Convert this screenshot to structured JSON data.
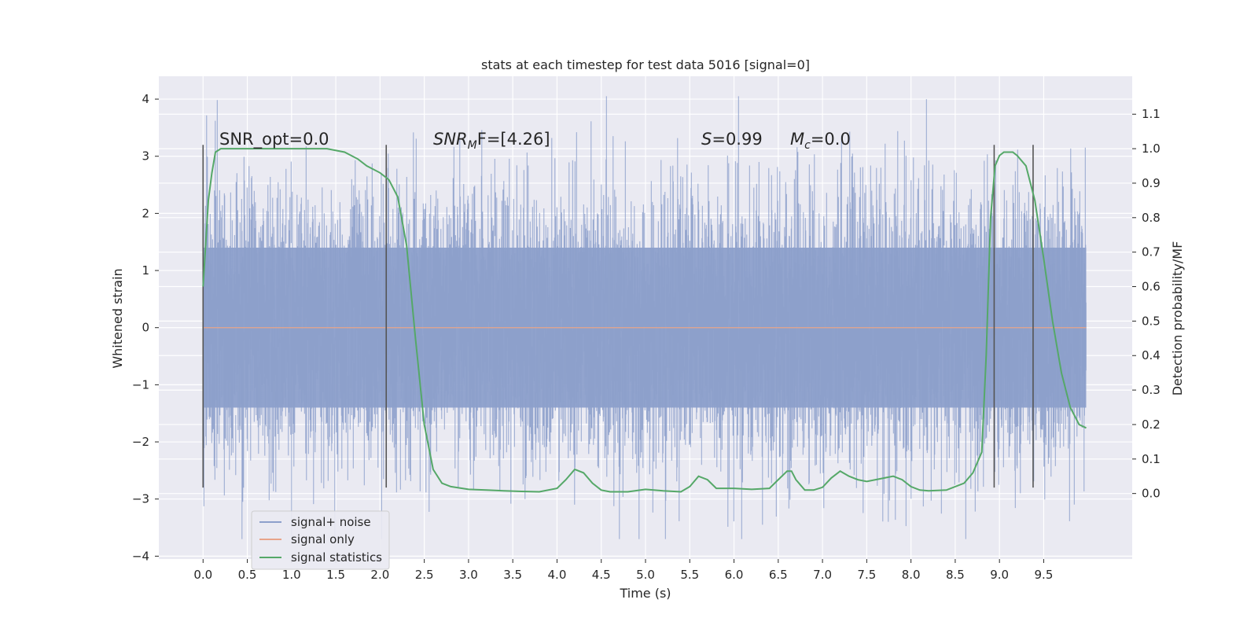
{
  "chart_data": {
    "type": "line",
    "title": "stats at each timestep for test data 5016 [signal=0]",
    "xlabel": "Time (s)",
    "ylabel": "Whitened strain",
    "ylabel_right": "Detection probability/MF",
    "xlim": [
      -0.5,
      10.5
    ],
    "ylim": [
      -4.05,
      4.4
    ],
    "ylim_right": [
      -0.19,
      1.21
    ],
    "grid": true,
    "legend_position": "lower-left",
    "x_ticks": [
      "0.0",
      "0.5",
      "1.0",
      "1.5",
      "2.0",
      "2.5",
      "3.0",
      "3.5",
      "4.0",
      "4.5",
      "5.0",
      "5.5",
      "6.0",
      "6.5",
      "7.0",
      "7.5",
      "8.0",
      "8.5",
      "9.0",
      "9.5"
    ],
    "y_ticks": [
      "4",
      "3",
      "2",
      "1",
      "0",
      "−1",
      "−2",
      "−3",
      "−4"
    ],
    "y_ticks_right": [
      "1.1",
      "1.0",
      "0.9",
      "0.8",
      "0.7",
      "0.6",
      "0.5",
      "0.4",
      "0.3",
      "0.2",
      "0.1",
      "0.0"
    ],
    "annotations": {
      "snr_opt": "SNR_opt=0.0",
      "snr_mf_italic": "SNR",
      "snr_mf_sub": "M",
      "snr_mf_rest": "F=[4.26]",
      "s_italic": "S",
      "s_rest": "=0.99",
      "mc_italic": "M",
      "mc_sub": "c",
      "mc_rest": "=0.0"
    },
    "series": [
      {
        "name": "signal+ noise",
        "color": "#8da0cb",
        "kind": "noise",
        "x_range": [
          0.0,
          9.98
        ],
        "envelope": "dense Gaussian noise, approx. ±1.4 core, peaks to about ±3.5"
      },
      {
        "name": "signal only",
        "color": "#e8a48a",
        "x": [
          0.0,
          9.98
        ],
        "y": [
          0.0,
          0.0
        ]
      },
      {
        "name": "signal statistics",
        "color": "#55a868",
        "axis": "right",
        "x": [
          0.0,
          0.06,
          0.1,
          0.14,
          0.2,
          0.3,
          0.5,
          1.0,
          1.4,
          1.6,
          1.75,
          1.85,
          2.0,
          2.1,
          2.2,
          2.3,
          2.4,
          2.5,
          2.6,
          2.7,
          2.8,
          3.0,
          3.2,
          3.4,
          3.6,
          3.8,
          4.0,
          4.1,
          4.2,
          4.3,
          4.4,
          4.5,
          4.6,
          4.8,
          5.0,
          5.2,
          5.4,
          5.5,
          5.6,
          5.7,
          5.8,
          6.0,
          6.2,
          6.4,
          6.5,
          6.6,
          6.65,
          6.7,
          6.8,
          6.9,
          7.0,
          7.1,
          7.2,
          7.3,
          7.4,
          7.5,
          7.6,
          7.7,
          7.8,
          7.9,
          8.0,
          8.1,
          8.2,
          8.4,
          8.6,
          8.7,
          8.8,
          8.85,
          8.9,
          8.95,
          9.0,
          9.05,
          9.1,
          9.15,
          9.2,
          9.3,
          9.4,
          9.5,
          9.6,
          9.7,
          9.8,
          9.9,
          9.98
        ],
        "y": [
          0.6,
          0.85,
          0.93,
          0.99,
          1.0,
          1.0,
          1.0,
          1.0,
          1.0,
          0.99,
          0.97,
          0.95,
          0.93,
          0.91,
          0.86,
          0.72,
          0.45,
          0.2,
          0.07,
          0.03,
          0.02,
          0.012,
          0.01,
          0.008,
          0.006,
          0.005,
          0.015,
          0.04,
          0.07,
          0.06,
          0.03,
          0.01,
          0.005,
          0.005,
          0.012,
          0.008,
          0.005,
          0.02,
          0.05,
          0.04,
          0.015,
          0.015,
          0.012,
          0.015,
          0.04,
          0.065,
          0.065,
          0.04,
          0.01,
          0.01,
          0.018,
          0.045,
          0.065,
          0.05,
          0.04,
          0.035,
          0.04,
          0.045,
          0.05,
          0.04,
          0.02,
          0.01,
          0.008,
          0.01,
          0.03,
          0.06,
          0.12,
          0.4,
          0.8,
          0.95,
          0.98,
          0.99,
          0.99,
          0.99,
          0.98,
          0.95,
          0.85,
          0.68,
          0.5,
          0.35,
          0.25,
          0.2,
          0.19
        ]
      }
    ],
    "vertical_markers": [
      {
        "x": 0.0,
        "y_range": [
          -2.8,
          3.2
        ]
      },
      {
        "x": 2.07,
        "y_range": [
          -2.8,
          3.2
        ]
      },
      {
        "x": 8.94,
        "y_range": [
          -2.8,
          3.2
        ]
      },
      {
        "x": 9.38,
        "y_range": [
          -2.8,
          3.2
        ]
      }
    ]
  }
}
